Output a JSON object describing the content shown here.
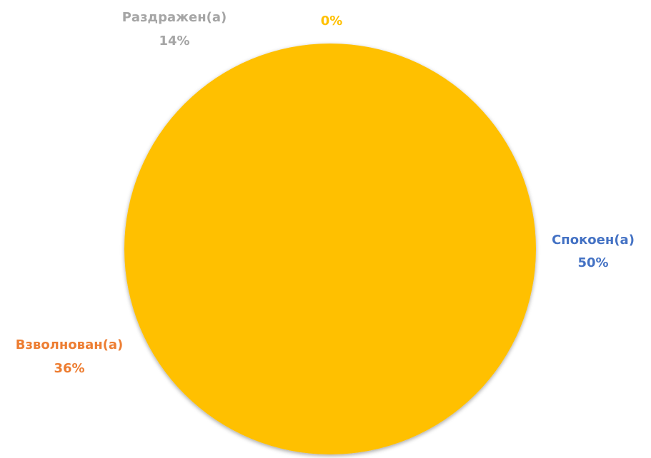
{
  "chart_data": {
    "type": "pie",
    "slices": [
      {
        "label": "Спокоен(а)",
        "value": 50,
        "value_label": "50%",
        "color": "#4472C4"
      },
      {
        "label": "Взволнован(а)",
        "value": 36,
        "value_label": "36%",
        "color": "#ED7D31"
      },
      {
        "label": "Раздражен(а)",
        "value": 14,
        "value_label": "14%",
        "color": "#A5A5A5"
      },
      {
        "label": "",
        "value": 0,
        "value_label": "0%",
        "color": "#FFC000"
      }
    ],
    "fill_color": "#FFC000"
  }
}
